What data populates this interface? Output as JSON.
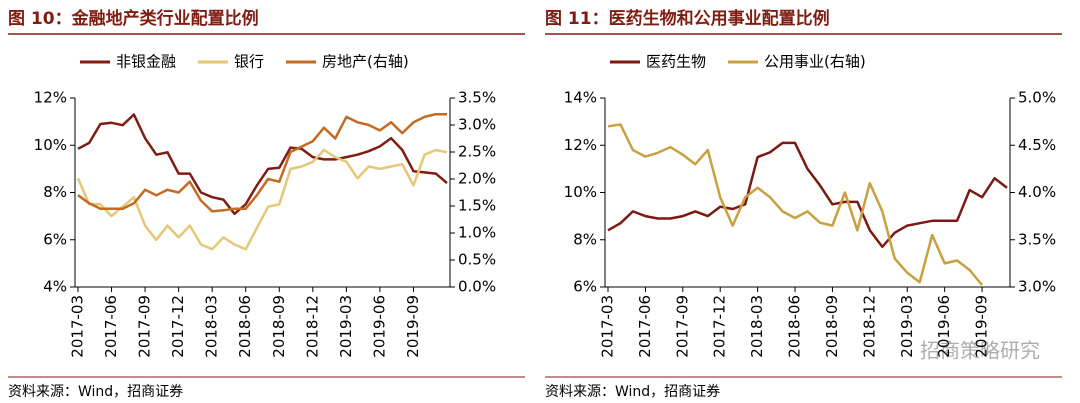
{
  "chart_data": [
    {
      "type": "line",
      "title": "图 10：金融地产类行业配置比例",
      "categories": [
        "2017-03",
        null,
        null,
        "2017-06",
        null,
        null,
        "2017-09",
        null,
        null,
        "2017-12",
        null,
        null,
        "2018-03",
        null,
        null,
        "2018-06",
        null,
        null,
        "2018-09",
        null,
        null,
        "2018-12",
        null,
        null,
        "2019-03",
        null,
        null,
        "2019-06",
        null,
        null,
        "2019-09",
        null,
        null,
        null
      ],
      "series": [
        {
          "name": "非银金融",
          "color": "#7f1d12",
          "values": [
            9.85,
            10.1,
            10.9,
            10.95,
            10.85,
            11.3,
            10.3,
            9.6,
            9.7,
            8.8,
            8.8,
            8.0,
            7.8,
            7.7,
            7.1,
            7.5,
            8.3,
            9.0,
            9.05,
            9.9,
            9.85,
            9.5,
            9.4,
            9.4,
            9.5,
            9.6,
            9.75,
            9.95,
            10.3,
            9.8,
            8.9,
            8.85,
            8.8,
            8.4
          ]
        },
        {
          "name": "银行",
          "color": "#e6c678",
          "values": [
            8.6,
            7.5,
            7.5,
            7.0,
            7.4,
            7.8,
            6.6,
            6.0,
            6.6,
            6.1,
            6.6,
            5.8,
            5.6,
            6.1,
            5.8,
            5.6,
            6.5,
            7.4,
            7.5,
            9.0,
            9.1,
            9.3,
            9.8,
            9.5,
            9.3,
            8.6,
            9.1,
            9.0,
            9.1,
            9.2,
            8.3,
            9.6,
            9.8,
            9.7
          ]
        },
        {
          "name": "房地产(右轴)",
          "color": "#c46a22",
          "axis": "y2",
          "values": [
            1.7,
            1.55,
            1.45,
            1.45,
            1.45,
            1.55,
            1.8,
            1.7,
            1.8,
            1.75,
            1.95,
            1.6,
            1.4,
            1.42,
            1.45,
            1.45,
            1.7,
            2.0,
            1.95,
            2.5,
            2.6,
            2.7,
            2.95,
            2.75,
            3.15,
            3.05,
            3.0,
            2.9,
            3.05,
            2.85,
            3.05,
            3.15,
            3.2,
            3.2
          ]
        }
      ],
      "ylim": [
        4,
        12
      ],
      "yticks": [
        {
          "value": 4,
          "label": "4%"
        },
        {
          "value": 6,
          "label": "6%"
        },
        {
          "value": 8,
          "label": "8%"
        },
        {
          "value": 10,
          "label": "10%"
        },
        {
          "value": 12,
          "label": "12%"
        }
      ],
      "y2lim": [
        0,
        3.5
      ],
      "y2ticks": [
        {
          "value": 0,
          "label": "0.0%"
        },
        {
          "value": 0.5,
          "label": "0.5%"
        },
        {
          "value": 1,
          "label": "1.0%"
        },
        {
          "value": 1.5,
          "label": "1.5%"
        },
        {
          "value": 2,
          "label": "2.0%"
        },
        {
          "value": 2.5,
          "label": "2.5%"
        },
        {
          "value": 3,
          "label": "3.0%"
        },
        {
          "value": 3.5,
          "label": "3.5%"
        }
      ],
      "source": "资料来源：Wind，招商证券"
    },
    {
      "type": "line",
      "title": "图 11：医药生物和公用事业配置比例",
      "categories": [
        "2017-03",
        null,
        null,
        "2017-06",
        null,
        null,
        "2017-09",
        null,
        null,
        "2017-12",
        null,
        null,
        "2018-03",
        null,
        null,
        "2018-06",
        null,
        null,
        "2018-09",
        null,
        null,
        "2018-12",
        null,
        null,
        "2019-03",
        null,
        null,
        "2019-06",
        null,
        null,
        "2019-09",
        null,
        null
      ],
      "series": [
        {
          "name": "医药生物",
          "color": "#7a1a12",
          "values": [
            8.4,
            8.7,
            9.2,
            9.0,
            8.9,
            8.9,
            9.0,
            9.2,
            9.0,
            9.4,
            9.3,
            9.5,
            11.5,
            11.7,
            12.1,
            12.1,
            11.0,
            10.3,
            9.5,
            9.6,
            9.6,
            8.4,
            7.7,
            8.3,
            8.6,
            8.7,
            8.8,
            8.8,
            8.8,
            10.1,
            9.8,
            10.6,
            10.2
          ]
        },
        {
          "name": "公用事业(右轴)",
          "color": "#c8a040",
          "axis": "y2",
          "values": [
            4.7,
            4.72,
            4.45,
            4.38,
            4.42,
            4.48,
            4.4,
            4.3,
            4.45,
            3.95,
            3.65,
            3.95,
            4.05,
            3.95,
            3.8,
            3.73,
            3.8,
            3.68,
            3.65,
            4.0,
            3.6,
            4.1,
            3.8,
            3.3,
            3.15,
            3.05,
            3.55,
            3.25,
            3.28,
            3.18,
            3.02,
            null,
            null
          ]
        }
      ],
      "ylim": [
        6,
        14
      ],
      "yticks": [
        {
          "value": 6,
          "label": "6%"
        },
        {
          "value": 8,
          "label": "8%"
        },
        {
          "value": 10,
          "label": "10%"
        },
        {
          "value": 12,
          "label": "12%"
        },
        {
          "value": 14,
          "label": "14%"
        }
      ],
      "y2lim": [
        3,
        5
      ],
      "y2ticks": [
        {
          "value": 3,
          "label": "3.0%"
        },
        {
          "value": 3.5,
          "label": "3.5%"
        },
        {
          "value": 4,
          "label": "4.0%"
        },
        {
          "value": 4.5,
          "label": "4.5%"
        },
        {
          "value": 5,
          "label": "5.0%"
        }
      ],
      "source": "资料来源：Wind，招商证券"
    }
  ],
  "watermark": "招商策略研究"
}
